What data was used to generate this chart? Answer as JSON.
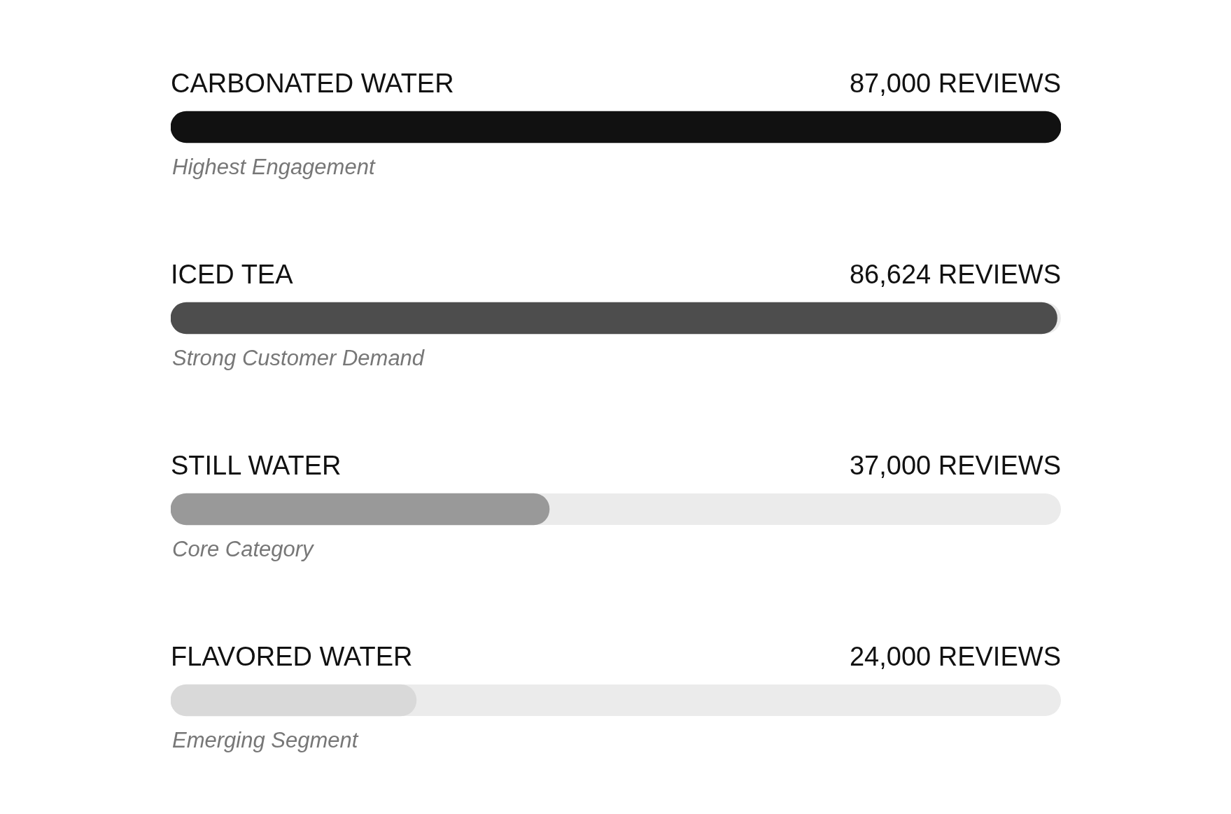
{
  "chart_data": {
    "type": "bar",
    "orientation": "horizontal",
    "categories": [
      "CARBONATED WATER",
      "ICED TEA",
      "STILL WATER",
      "FLAVORED WATER"
    ],
    "values": [
      87000,
      86624,
      37000,
      24000
    ],
    "colors": [
      "#111111",
      "#4d4d4d",
      "#999999",
      "#d9d9d9"
    ],
    "value_labels": [
      "87,000 REVIEWS",
      "86,624 REVIEWS",
      "37,000 REVIEWS",
      "24,000 REVIEWS"
    ],
    "annotations": [
      "Highest Engagement",
      "Strong Customer Demand",
      "Core Category",
      "Emerging Segment"
    ],
    "legend": false
  }
}
